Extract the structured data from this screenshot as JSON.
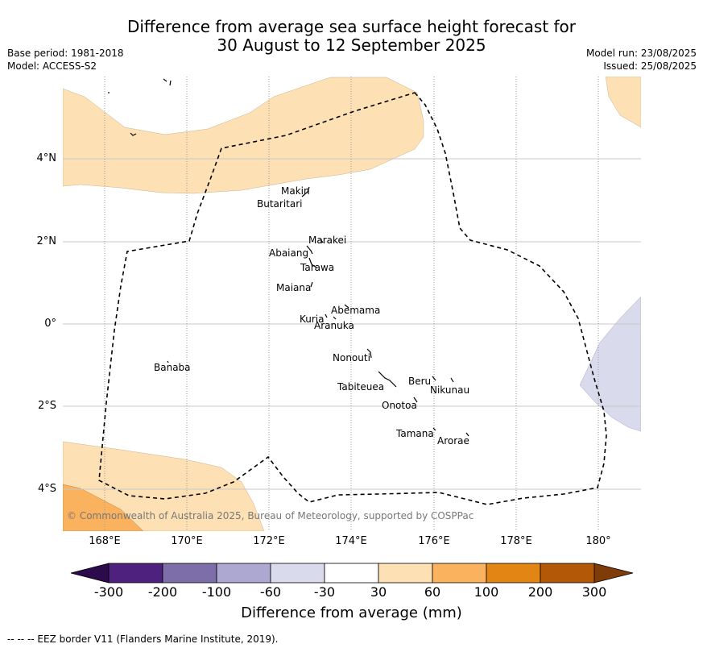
{
  "title_line1": "Difference from average sea surface height forecast for",
  "title_line2": "30 August to 12 September 2025",
  "meta_left": {
    "base_period": "Base period: 1981-2018",
    "model": "Model: ACCESS-S2"
  },
  "meta_right": {
    "model_run": "Model run: 23/08/2025",
    "issued": "Issued: 25/08/2025"
  },
  "lat_labels": [
    "4°N",
    "2°N",
    "0°",
    "2°S",
    "4°S"
  ],
  "lon_labels": [
    "168°E",
    "170°E",
    "172°E",
    "174°E",
    "176°E",
    "178°E",
    "180°"
  ],
  "places": {
    "makin": "Makin",
    "butaritari": "Butaritari",
    "marakei": "Marakei",
    "abaiang": "Abaiang",
    "tarawa": "Tarawa",
    "maiana": "Maiana",
    "abemama": "Abemama",
    "kuria": "Kuria",
    "aranuka": "Aranuka",
    "nonouti": "Nonouti",
    "banaba": "Banaba",
    "tabiteuea": "Tabiteuea",
    "beru": "Beru",
    "nikunau": "Nikunau",
    "onotoa": "Onotoa",
    "tamana": "Tamana",
    "arorae": "Arorae"
  },
  "copyright": "© Commonwealth of Australia 2025, Bureau of Meteorology, supported by COSPPac",
  "colorbar": {
    "ticks": [
      "-300",
      "-200",
      "-100",
      "-60",
      "-30",
      "30",
      "60",
      "100",
      "200",
      "300"
    ],
    "colors": [
      "#4f217f",
      "#7d6ea9",
      "#aca8d2",
      "#d9daec",
      "#ffffff",
      "#fde0b4",
      "#fbb25f",
      "#e28515",
      "#b35806"
    ],
    "under_color": "#2d0a4b",
    "over_color": "#7f3b08",
    "label": "Difference from average (mm)"
  },
  "footer": "--  --  -- EEZ border V11 (Flanders Marine Institute, 2019).",
  "fill_colors": {
    "light_orange": "#fde0b4",
    "orange": "#fbb25f",
    "lavender": "#d9daec"
  }
}
